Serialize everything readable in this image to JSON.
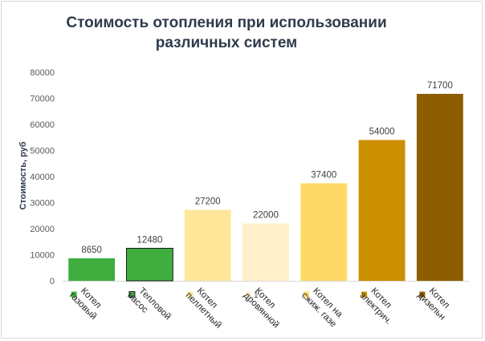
{
  "chart_data": {
    "type": "bar",
    "title_lines": [
      "Стоимость отопления при использовании",
      "различных систем"
    ],
    "ylabel": "Стоимость, руб",
    "xlabel": "",
    "ylim": [
      0,
      80000
    ],
    "yticks": [
      0,
      10000,
      20000,
      30000,
      40000,
      50000,
      60000,
      70000,
      80000
    ],
    "grid": false,
    "legend": "bottom",
    "categories": [
      [
        "Котел",
        "газовый"
      ],
      [
        "Тепловой",
        "насос"
      ],
      [
        "Котел",
        "пеллетный"
      ],
      [
        "Котел",
        "дровянной"
      ],
      [
        "Котел на",
        "сжиж. газе"
      ],
      [
        "Котел",
        "электрич."
      ],
      [
        "Котел",
        "дизельн"
      ]
    ],
    "values": [
      8650,
      12480,
      27200,
      22000,
      37400,
      54000,
      71700
    ],
    "data_labels": [
      "8650",
      "12480",
      "27200",
      "22000",
      "37400",
      "54000",
      "71700"
    ],
    "colors": [
      "#3fae3f",
      "#3fae3f",
      "#ffe699",
      "#fff0c9",
      "#ffd966",
      "#cc8f00",
      "#8c5e00"
    ],
    "outlined": [
      false,
      true,
      false,
      false,
      false,
      false,
      false
    ],
    "label_colors": [
      "#262626",
      "#e02020",
      "#262626",
      "#262626",
      "#262626",
      "#262626",
      "#262626"
    ],
    "legend_note": "1"
  }
}
